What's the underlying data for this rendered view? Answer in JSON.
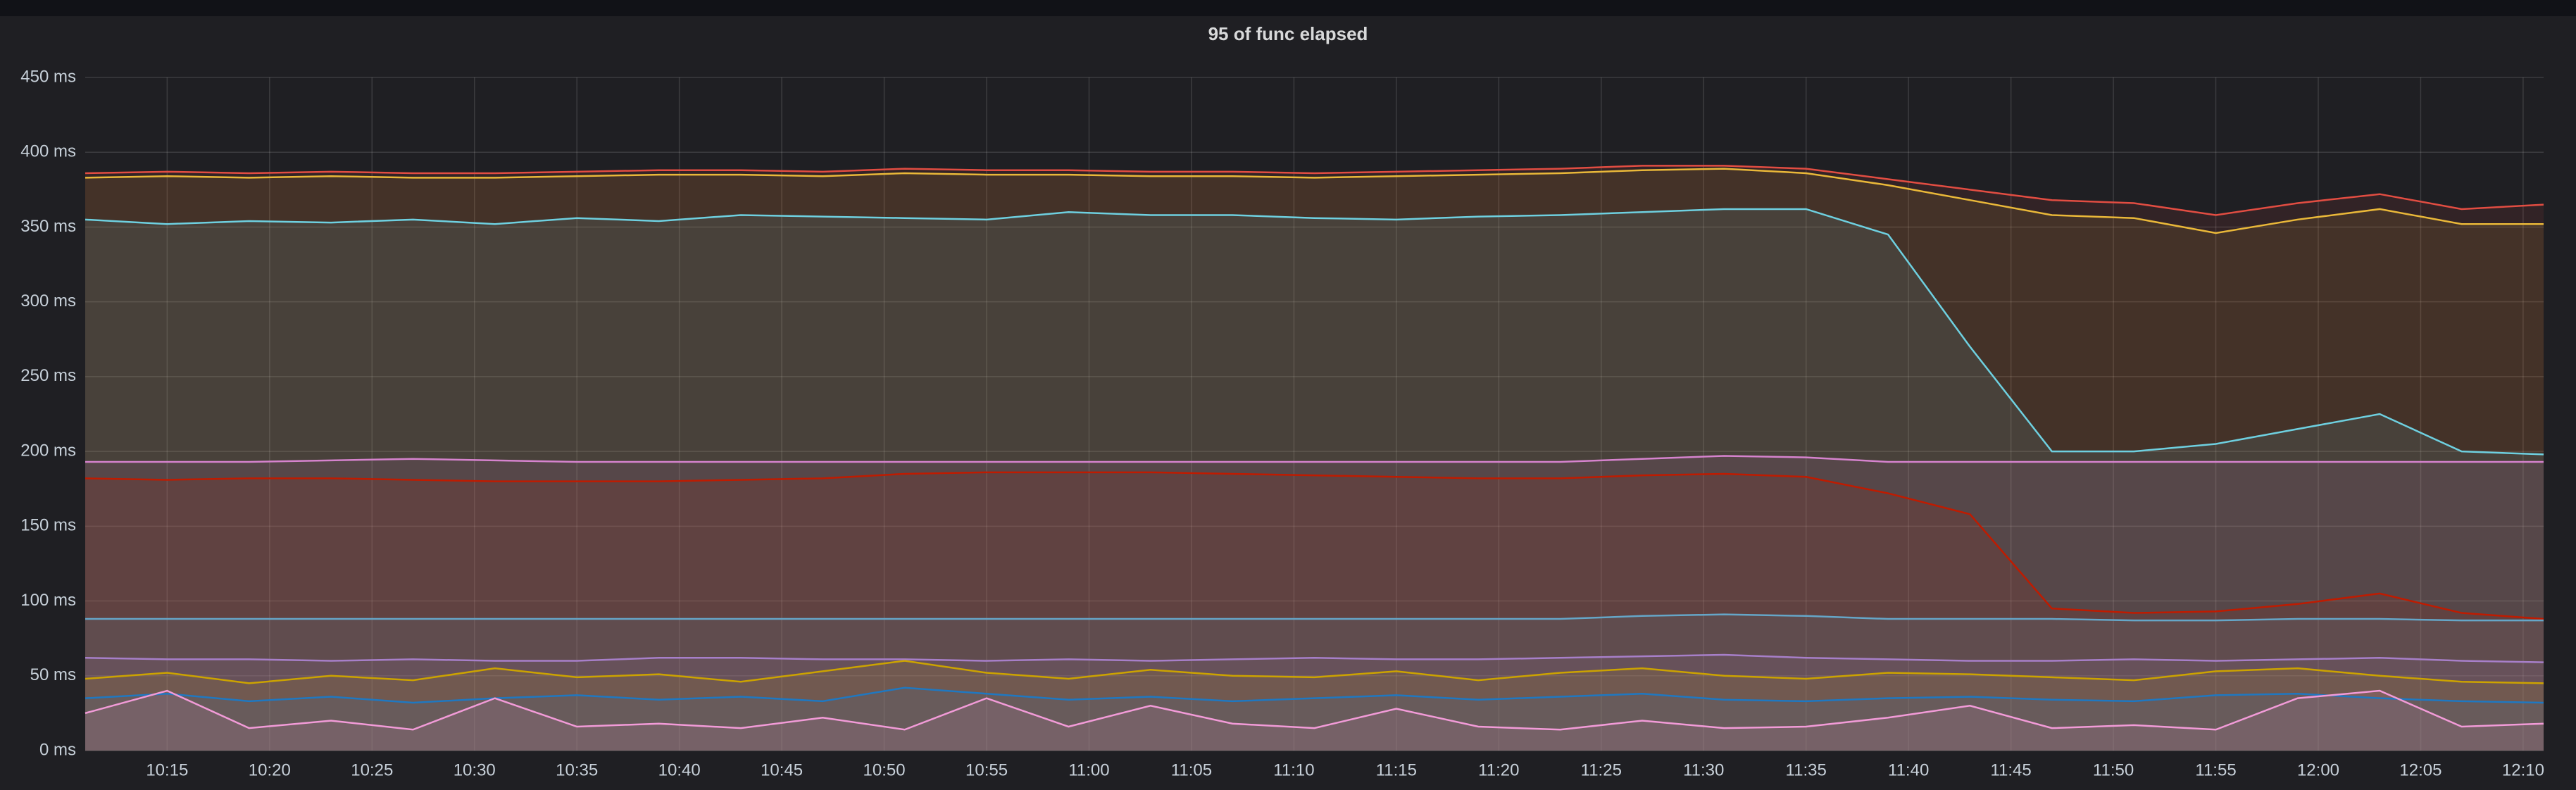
{
  "chart_data": {
    "type": "line",
    "title": "95 of func elapsed",
    "x": [
      611,
      615,
      619,
      623,
      627,
      631,
      635,
      639,
      643,
      647,
      651,
      655,
      659,
      663,
      667,
      671,
      675,
      679,
      683,
      687,
      691,
      695,
      699,
      703,
      707,
      711,
      715,
      719,
      723,
      727,
      731
    ],
    "xlim": [
      611,
      731
    ],
    "xticks": [
      {
        "value": 615,
        "label": "10:15"
      },
      {
        "value": 620,
        "label": "10:20"
      },
      {
        "value": 625,
        "label": "10:25"
      },
      {
        "value": 630,
        "label": "10:30"
      },
      {
        "value": 635,
        "label": "10:35"
      },
      {
        "value": 640,
        "label": "10:40"
      },
      {
        "value": 645,
        "label": "10:45"
      },
      {
        "value": 650,
        "label": "10:50"
      },
      {
        "value": 655,
        "label": "10:55"
      },
      {
        "value": 660,
        "label": "11:00"
      },
      {
        "value": 665,
        "label": "11:05"
      },
      {
        "value": 670,
        "label": "11:10"
      },
      {
        "value": 675,
        "label": "11:15"
      },
      {
        "value": 680,
        "label": "11:20"
      },
      {
        "value": 685,
        "label": "11:25"
      },
      {
        "value": 690,
        "label": "11:30"
      },
      {
        "value": 695,
        "label": "11:35"
      },
      {
        "value": 700,
        "label": "11:40"
      },
      {
        "value": 705,
        "label": "11:45"
      },
      {
        "value": 710,
        "label": "11:50"
      },
      {
        "value": 715,
        "label": "11:55"
      },
      {
        "value": 720,
        "label": "12:00"
      },
      {
        "value": 725,
        "label": "12:05"
      },
      {
        "value": 730,
        "label": "12:10"
      }
    ],
    "ylim": [
      0,
      450
    ],
    "yticks": [
      {
        "value": 0,
        "label": "0 ms"
      },
      {
        "value": 50,
        "label": "50 ms"
      },
      {
        "value": 100,
        "label": "100 ms"
      },
      {
        "value": 150,
        "label": "150 ms"
      },
      {
        "value": 200,
        "label": "200 ms"
      },
      {
        "value": 250,
        "label": "250 ms"
      },
      {
        "value": 300,
        "label": "300 ms"
      },
      {
        "value": 350,
        "label": "350 ms"
      },
      {
        "value": 400,
        "label": "400 ms"
      },
      {
        "value": 450,
        "label": "450 ms"
      }
    ],
    "grid": true,
    "series": [
      {
        "color": "#e24d42",
        "values": [
          386,
          387,
          386,
          387,
          386,
          386,
          387,
          388,
          388,
          387,
          389,
          388,
          388,
          387,
          387,
          386,
          387,
          388,
          389,
          391,
          391,
          389,
          382,
          375,
          368,
          366,
          358,
          366,
          372,
          362,
          365
        ]
      },
      {
        "color": "#eab839",
        "values": [
          383,
          384,
          383,
          384,
          383,
          383,
          384,
          385,
          385,
          384,
          386,
          385,
          385,
          384,
          384,
          383,
          384,
          385,
          386,
          388,
          389,
          386,
          378,
          368,
          358,
          356,
          346,
          355,
          362,
          352,
          352
        ]
      },
      {
        "color": "#6ed0e0",
        "values": [
          355,
          352,
          354,
          353,
          355,
          352,
          356,
          354,
          358,
          357,
          356,
          355,
          360,
          358,
          358,
          356,
          355,
          357,
          358,
          360,
          362,
          362,
          345,
          270,
          200,
          200,
          205,
          215,
          225,
          200,
          198
        ]
      },
      {
        "color": "#d683ce",
        "values": [
          193,
          193,
          193,
          194,
          195,
          194,
          193,
          193,
          193,
          193,
          193,
          193,
          193,
          193,
          193,
          193,
          193,
          193,
          193,
          195,
          197,
          196,
          193,
          193,
          193,
          193,
          193,
          193,
          193,
          193,
          193
        ]
      },
      {
        "color": "#bf1b00",
        "values": [
          182,
          181,
          182,
          182,
          181,
          180,
          180,
          180,
          181,
          182,
          185,
          186,
          186,
          186,
          185,
          184,
          183,
          182,
          182,
          184,
          185,
          183,
          172,
          158,
          95,
          92,
          93,
          98,
          105,
          92,
          88
        ]
      },
      {
        "color": "#65a6c8",
        "values": [
          88,
          88,
          88,
          88,
          88,
          88,
          88,
          88,
          88,
          88,
          88,
          88,
          88,
          88,
          88,
          88,
          88,
          88,
          88,
          90,
          91,
          90,
          88,
          88,
          88,
          87,
          87,
          88,
          88,
          87,
          87
        ]
      },
      {
        "color": "#a77fc9",
        "values": [
          62,
          61,
          61,
          60,
          61,
          60,
          60,
          62,
          62,
          61,
          61,
          60,
          61,
          60,
          61,
          62,
          61,
          61,
          62,
          63,
          64,
          62,
          61,
          60,
          60,
          61,
          60,
          61,
          62,
          60,
          59
        ]
      },
      {
        "color": "#cca300",
        "values": [
          48,
          52,
          45,
          50,
          47,
          55,
          49,
          51,
          46,
          53,
          60,
          52,
          48,
          54,
          50,
          49,
          53,
          47,
          52,
          55,
          50,
          48,
          52,
          51,
          49,
          47,
          53,
          55,
          50,
          46,
          45
        ]
      },
      {
        "color": "#1f78c1",
        "values": [
          35,
          38,
          33,
          36,
          32,
          35,
          37,
          34,
          36,
          33,
          42,
          38,
          34,
          36,
          33,
          35,
          37,
          34,
          36,
          38,
          34,
          33,
          35,
          36,
          34,
          33,
          37,
          38,
          35,
          33,
          32
        ]
      },
      {
        "color": "#f29bd8",
        "values": [
          25,
          40,
          15,
          20,
          14,
          35,
          16,
          18,
          15,
          22,
          14,
          35,
          16,
          30,
          18,
          15,
          28,
          16,
          14,
          20,
          15,
          16,
          22,
          30,
          15,
          17,
          14,
          35,
          40,
          16,
          18
        ]
      }
    ]
  }
}
